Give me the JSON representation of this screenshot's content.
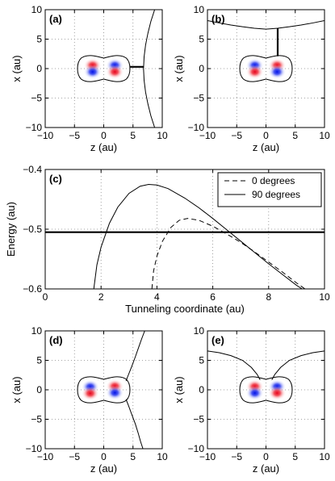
{
  "chart_data": [
    {
      "panel": "(a)",
      "type": "contour",
      "xlabel": "z (au)",
      "ylabel": "x (au)",
      "xlim": [
        -10,
        10
      ],
      "ylim": [
        -10,
        10
      ],
      "xticks": [
        -10,
        -5,
        0,
        5,
        10
      ],
      "yticks": [
        -10,
        -5,
        0,
        5,
        10
      ],
      "grid": true,
      "orbital_lobes": [
        {
          "z": -1.9,
          "x": 0.55,
          "sign": "+"
        },
        {
          "z": -1.9,
          "x": -0.55,
          "sign": "-"
        },
        {
          "z": 1.9,
          "x": 0.55,
          "sign": "-"
        },
        {
          "z": 1.9,
          "x": -0.55,
          "sign": "+"
        }
      ],
      "barrier_curve_right": {
        "x": [
          -10,
          -8,
          -6,
          -4,
          -2,
          0,
          2,
          4,
          6,
          8,
          10
        ],
        "z": [
          8.7,
          8.05,
          7.55,
          7.15,
          6.9,
          6.8,
          6.9,
          7.15,
          7.55,
          8.05,
          8.7
        ]
      },
      "tunneling_segment": {
        "z": [
          4.5,
          6.8
        ],
        "x": [
          0.3,
          0.3
        ]
      }
    },
    {
      "panel": "(b)",
      "type": "contour",
      "xlabel": "z (au)",
      "ylabel": "x (au)",
      "xlim": [
        -10,
        10
      ],
      "ylim": [
        -10,
        10
      ],
      "xticks": [
        -10,
        -5,
        0,
        5,
        10
      ],
      "yticks": [
        -10,
        -5,
        0,
        5,
        10
      ],
      "grid": true,
      "orbital_lobes": [
        {
          "z": -1.9,
          "x": 0.55,
          "sign": "-"
        },
        {
          "z": -1.9,
          "x": -0.55,
          "sign": "+"
        },
        {
          "z": 1.9,
          "x": 0.55,
          "sign": "+"
        },
        {
          "z": 1.9,
          "x": -0.55,
          "sign": "-"
        }
      ],
      "barrier_curve_top": {
        "z": [
          -10,
          -8,
          -6,
          -4,
          -2,
          0,
          2,
          4,
          6,
          8,
          10
        ],
        "x": [
          8.15,
          7.75,
          7.4,
          7.1,
          6.85,
          6.7,
          6.85,
          7.1,
          7.4,
          7.75,
          8.15
        ]
      },
      "tunneling_segment": {
        "z": [
          2.0,
          2.0
        ],
        "x": [
          2.1,
          6.85
        ]
      }
    },
    {
      "panel": "(c)",
      "type": "line",
      "xlabel": "Tunneling coordinate (au)",
      "ylabel": "Energy (au)",
      "xlim": [
        0,
        10
      ],
      "ylim": [
        -0.6,
        -0.4
      ],
      "xticks": [
        0,
        2,
        4,
        6,
        8,
        10
      ],
      "yticks": [
        -0.6,
        -0.5,
        -0.4
      ],
      "ytick_labels": [
        "−0.6",
        "−0.5",
        "−0.4"
      ],
      "grid": true,
      "legend_position": "top-right",
      "legend": [
        {
          "label": "0 degrees",
          "style": "dashed"
        },
        {
          "label": "90 degrees",
          "style": "solid"
        }
      ],
      "series": [
        {
          "name": "0 degrees",
          "style": "dashed",
          "x": [
            3.82,
            3.88,
            4.0,
            4.2,
            4.5,
            4.8,
            5.1,
            5.5,
            6.0,
            6.5,
            7.0,
            7.5,
            8.0,
            8.5,
            9.0,
            9.3
          ],
          "y": [
            -0.6,
            -0.57,
            -0.545,
            -0.52,
            -0.497,
            -0.485,
            -0.482,
            -0.485,
            -0.495,
            -0.508,
            -0.522,
            -0.538,
            -0.555,
            -0.572,
            -0.59,
            -0.6
          ]
        },
        {
          "name": "90 degrees",
          "style": "solid",
          "x": [
            1.74,
            1.85,
            2.0,
            2.3,
            2.6,
            3.0,
            3.4,
            3.7,
            4.0,
            4.4,
            5.0,
            5.5,
            6.0,
            6.5,
            7.0,
            7.5,
            8.0,
            8.5,
            9.0,
            9.2
          ],
          "y": [
            -0.6,
            -0.56,
            -0.53,
            -0.49,
            -0.463,
            -0.44,
            -0.428,
            -0.425,
            -0.426,
            -0.432,
            -0.448,
            -0.464,
            -0.482,
            -0.501,
            -0.52,
            -0.539,
            -0.558,
            -0.576,
            -0.594,
            -0.6
          ]
        }
      ],
      "reference_line": {
        "y": -0.505
      }
    },
    {
      "panel": "(d)",
      "type": "contour",
      "xlabel": "z (au)",
      "ylabel": "x (au)",
      "xlim": [
        -10,
        10
      ],
      "ylim": [
        -10,
        10
      ],
      "xticks": [
        -10,
        -5,
        0,
        5,
        10
      ],
      "yticks": [
        -10,
        -5,
        0,
        5,
        10
      ],
      "grid": true,
      "orbital_lobes": [
        {
          "z": -2.3,
          "x": 0.5,
          "sign": "-"
        },
        {
          "z": -2.3,
          "x": -0.6,
          "sign": "+"
        },
        {
          "z": 1.9,
          "x": 0.6,
          "sign": "+"
        },
        {
          "z": 1.9,
          "x": -0.5,
          "sign": "-"
        }
      ],
      "barrier_curve_upper": {
        "z": [
          3.8,
          4.2,
          4.8,
          5.4,
          6.0,
          6.5,
          7.0
        ],
        "x": [
          1.5,
          2.5,
          4.0,
          5.6,
          7.3,
          8.7,
          10
        ]
      },
      "barrier_curve_lower": {
        "z": [
          3.8,
          4.2,
          4.8,
          5.4,
          5.9,
          6.3,
          6.7
        ],
        "x": [
          -1.6,
          -2.6,
          -4.2,
          -5.8,
          -7.4,
          -8.8,
          -10
        ]
      }
    },
    {
      "panel": "(e)",
      "type": "contour",
      "xlabel": "z (au)",
      "ylabel": "x (au)",
      "xlim": [
        -10,
        10
      ],
      "ylim": [
        -10,
        10
      ],
      "xticks": [
        -10,
        -5,
        0,
        5,
        10
      ],
      "yticks": [
        -10,
        -5,
        0,
        5,
        10
      ],
      "grid": true,
      "orbital_lobes": [
        {
          "z": -1.9,
          "x": 0.55,
          "sign": "+"
        },
        {
          "z": -1.9,
          "x": -0.55,
          "sign": "-"
        },
        {
          "z": 1.9,
          "x": 0.55,
          "sign": "-"
        },
        {
          "z": 1.9,
          "x": -0.55,
          "sign": "+"
        }
      ],
      "barrier_curve_left": {
        "z": [
          -10,
          -8,
          -6,
          -4,
          -2.5,
          -1.5,
          -1.0
        ],
        "x": [
          6.6,
          6.3,
          5.8,
          5.0,
          3.8,
          2.6,
          1.7
        ]
      },
      "barrier_curve_right": {
        "z": [
          1.0,
          1.5,
          2.5,
          4.0,
          6.0,
          8.0,
          10
        ],
        "x": [
          1.7,
          2.6,
          3.8,
          5.0,
          5.8,
          6.3,
          6.6
        ]
      }
    }
  ]
}
